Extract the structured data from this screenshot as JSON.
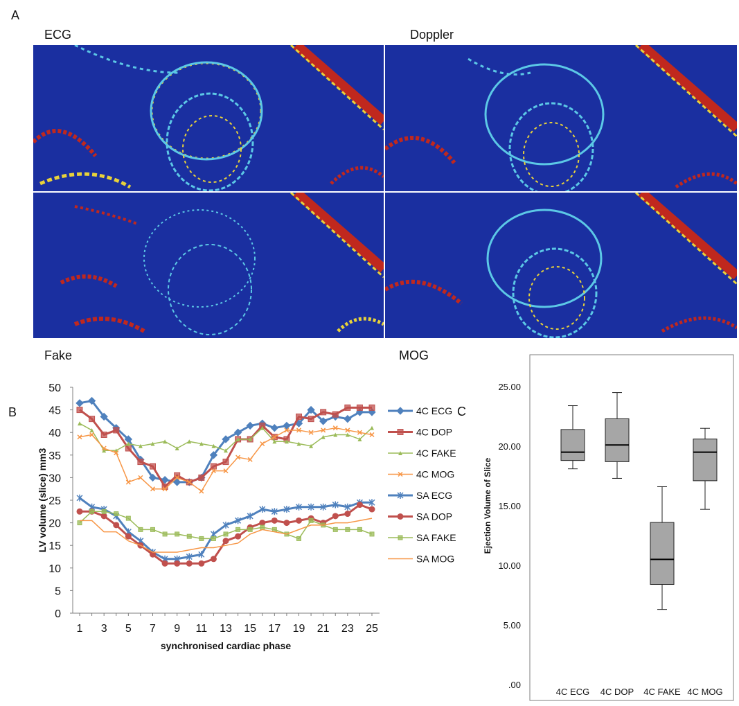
{
  "panels": {
    "a_letter": "A",
    "b_letter": "B",
    "c_letter": "C",
    "image_captions": [
      "ECG",
      "Doppler",
      "Fake",
      "MOG"
    ]
  },
  "colors": {
    "heatmap_bg": "#1a2fa0",
    "heat_hot": "#c0281e",
    "heat_warm": "#e8d23a",
    "heat_cool": "#5cc8e6",
    "box_fill": "#a6a6a6"
  },
  "chart_data": [
    {
      "type": "line",
      "title": "",
      "xlabel": "synchronised cardiac phase",
      "ylabel": "LV volume (slice) mm3",
      "ylim": [
        0,
        50
      ],
      "yticks": [
        0,
        5,
        10,
        15,
        20,
        25,
        30,
        35,
        40,
        45,
        50
      ],
      "x": [
        1,
        2,
        3,
        4,
        5,
        6,
        7,
        8,
        9,
        10,
        11,
        12,
        13,
        14,
        15,
        16,
        17,
        18,
        19,
        20,
        21,
        22,
        23,
        24,
        25
      ],
      "xtick_labels": [
        "1",
        "3",
        "5",
        "7",
        "9",
        "11",
        "13",
        "15",
        "17",
        "19",
        "21",
        "23",
        "25"
      ],
      "legend_position": "right",
      "series": [
        {
          "name": "4C ECG",
          "color": "#4f81bd",
          "marker": "diamond",
          "values": [
            46.5,
            47,
            43.5,
            41,
            38.5,
            34,
            30,
            29.5,
            29,
            29,
            30,
            35,
            38.5,
            40,
            41.5,
            42,
            41,
            41.5,
            42,
            45,
            42.5,
            43.5,
            43,
            44.5,
            44.5
          ]
        },
        {
          "name": "4C DOP",
          "color": "#c0504d",
          "marker": "square",
          "values": [
            45,
            43,
            39.5,
            40.5,
            36.5,
            33.5,
            32.5,
            28,
            30.5,
            29,
            30,
            32.5,
            33.5,
            38.5,
            38.5,
            41.5,
            39,
            38.5,
            43.5,
            43,
            44.5,
            44,
            45.5,
            45.5,
            45.5
          ]
        },
        {
          "name": "4C FAKE",
          "color": "#9bbb59",
          "marker": "triangle",
          "values": [
            42,
            40.5,
            36,
            36,
            37.5,
            37,
            37.5,
            38,
            36.5,
            38,
            37.5,
            37,
            36,
            38.5,
            38.5,
            41,
            38,
            38,
            37.5,
            37,
            39,
            39.5,
            39.5,
            38.5,
            41
          ]
        },
        {
          "name": "4C MOG",
          "color": "#f79646",
          "marker": "x",
          "values": [
            39,
            39.5,
            36.5,
            35.5,
            29,
            30,
            27.5,
            27.5,
            30,
            29,
            27,
            31.5,
            31.5,
            34.5,
            34,
            37.5,
            39,
            40.5,
            40.5,
            40,
            40.5,
            41,
            40.5,
            40,
            39.5
          ]
        },
        {
          "name": "SA ECG",
          "color": "#4f81bd",
          "marker": "asterisk",
          "values": [
            25.5,
            23.5,
            23,
            21.5,
            18,
            16,
            13.5,
            12,
            12,
            12.5,
            13,
            17.5,
            19.5,
            20.5,
            21.5,
            23,
            22.5,
            23,
            23.5,
            23.5,
            23.5,
            24,
            23.5,
            24.5,
            24.5
          ]
        },
        {
          "name": "SA DOP",
          "color": "#c0504d",
          "marker": "circle",
          "values": [
            22.5,
            22.5,
            21.5,
            19.5,
            17,
            15,
            13,
            11,
            11,
            11,
            11,
            12,
            16,
            17,
            19,
            20,
            20.5,
            20,
            20.5,
            21,
            20,
            21.5,
            22,
            24,
            23
          ]
        },
        {
          "name": "SA FAKE",
          "color": "#9bbb59",
          "marker": "square",
          "values": [
            20,
            22.5,
            22.5,
            22,
            21,
            18.5,
            18.5,
            17.5,
            17.5,
            17,
            16.5,
            16.5,
            17.5,
            18.5,
            18.5,
            19,
            18.5,
            17.5,
            16.5,
            20.5,
            19.5,
            18.5,
            18.5,
            18.5,
            17.5
          ]
        },
        {
          "name": "SA MOG",
          "color": "#f79646",
          "marker": "none",
          "values": [
            20.5,
            20.5,
            18,
            18,
            16,
            15,
            13.5,
            13.5,
            13.5,
            14,
            14.5,
            14.5,
            15,
            15.5,
            17.5,
            18.5,
            18,
            17.5,
            18.5,
            19.5,
            19.5,
            20,
            20,
            20.5,
            21
          ]
        }
      ]
    },
    {
      "type": "box",
      "title": "",
      "xlabel": "",
      "ylabel": "Ejection Volume of Slice",
      "ylim": [
        0,
        27
      ],
      "ytick_values": [
        0,
        5,
        10,
        15,
        20,
        25
      ],
      "ytick_labels": [
        ".00",
        "5.00",
        "10.00",
        "15.00",
        "20.00",
        "25.00"
      ],
      "categories": [
        "4C ECG",
        "4C DOP",
        "4C FAKE",
        "4C MOG"
      ],
      "boxes": [
        {
          "min": 18.1,
          "q1": 18.8,
          "median": 19.5,
          "q3": 21.4,
          "max": 23.4
        },
        {
          "min": 17.3,
          "q1": 18.7,
          "median": 20.1,
          "q3": 22.3,
          "max": 24.5
        },
        {
          "min": 6.3,
          "q1": 8.4,
          "median": 10.5,
          "q3": 13.6,
          "max": 16.6
        },
        {
          "min": 14.7,
          "q1": 17.1,
          "median": 19.5,
          "q3": 20.6,
          "max": 21.5
        }
      ]
    }
  ]
}
